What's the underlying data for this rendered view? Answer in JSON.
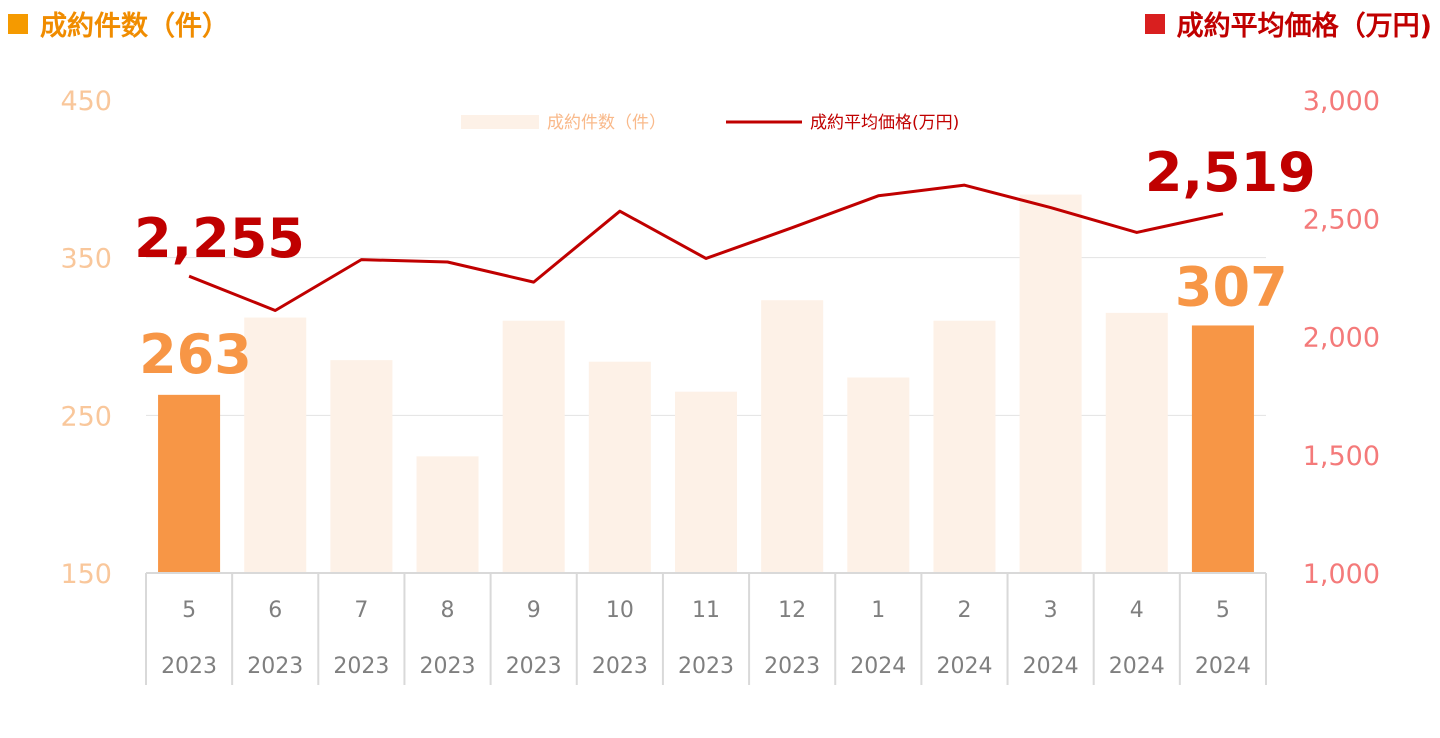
{
  "header": {
    "left_title": "成約件数（件）",
    "right_title": "成約平均価格（万円)"
  },
  "colors": {
    "bar_highlight": "#f79646",
    "bar_faded": "#fdf1e7",
    "line": "#c00000",
    "left_axis": "#f9c79b",
    "right_axis": "#f47a7a",
    "left_header_marker": "#f59a00",
    "right_header_marker": "#d91f1f"
  },
  "chart_data": {
    "type": "bar+line",
    "categories": [
      "5",
      "6",
      "7",
      "8",
      "9",
      "10",
      "11",
      "12",
      "1",
      "2",
      "3",
      "4",
      "5"
    ],
    "years": [
      "2023",
      "2023",
      "2023",
      "2023",
      "2023",
      "2023",
      "2023",
      "2023",
      "2024",
      "2024",
      "2024",
      "2024",
      "2024"
    ],
    "series": [
      {
        "name": "成約件数（件）",
        "type": "bar",
        "axis": "left",
        "values": [
          263,
          312,
          285,
          224,
          310,
          284,
          265,
          323,
          274,
          310,
          390,
          315,
          307
        ],
        "highlight": [
          true,
          false,
          false,
          false,
          false,
          false,
          false,
          false,
          false,
          false,
          false,
          false,
          true
        ]
      },
      {
        "name": "成約平均価格(万円)",
        "type": "line",
        "axis": "right",
        "values": [
          2255,
          2110,
          2325,
          2315,
          2230,
          2530,
          2330,
          2460,
          2595,
          2640,
          2545,
          2440,
          2519
        ]
      }
    ],
    "left_axis": {
      "ylim": [
        150,
        450
      ],
      "ticks": [
        "150",
        "250",
        "350",
        "450"
      ]
    },
    "right_axis": {
      "ylim": [
        1000,
        3000
      ],
      "ticks": [
        "1,000",
        "1,500",
        "2,000",
        "2,500",
        "3,000"
      ]
    },
    "data_labels": {
      "bar_first": "263",
      "bar_last": "307",
      "line_first": "2,255",
      "line_last": "2,519"
    },
    "legend": {
      "bar_label": "成約件数（件）",
      "line_label": "成約平均価格(万円)",
      "position": "top-center"
    },
    "grid": true
  }
}
